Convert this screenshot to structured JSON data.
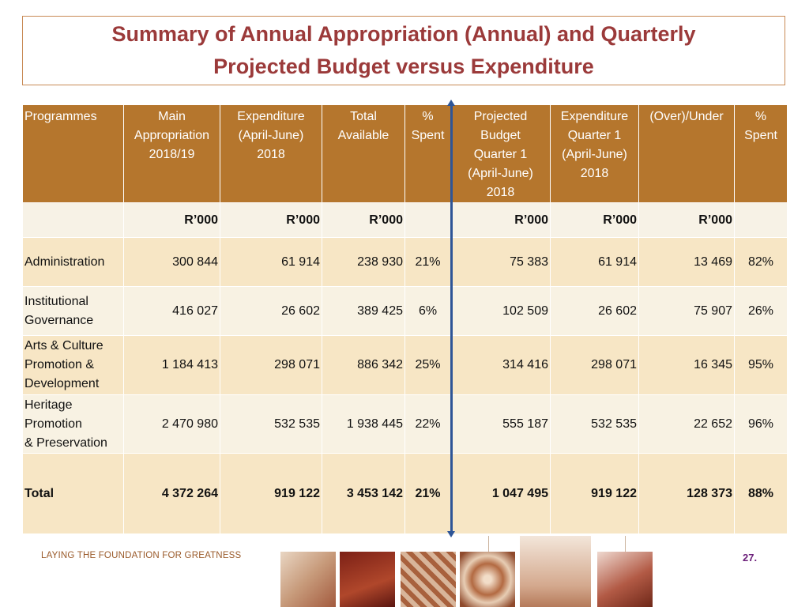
{
  "title": {
    "line1": "Summary of Annual Appropriation (Annual) and  Quarterly",
    "line2": "Projected Budget versus Expenditure"
  },
  "table": {
    "headers": {
      "programmes": "Programmes",
      "main_appropriation": [
        "Main",
        "Appropriation",
        "2018/19"
      ],
      "expenditure": [
        "Expenditure",
        "(April-June)",
        "2018"
      ],
      "total_available": [
        "Total",
        "Available"
      ],
      "pct_spent_1": [
        "%",
        "Spent"
      ],
      "projected_budget": [
        "Projected",
        "Budget",
        "Quarter 1",
        "(April-June)",
        "2018"
      ],
      "expenditure_q1": [
        "Expenditure",
        "Quarter 1",
        "(April-June)",
        "2018"
      ],
      "over_under": [
        "(Over)/Under"
      ],
      "pct_spent_2": [
        "%",
        "Spent"
      ]
    },
    "units": [
      "",
      "R’000",
      "R’000",
      "R’000",
      "",
      "R’000",
      "R’000",
      "R’000",
      ""
    ],
    "rows": [
      {
        "programme": [
          "Administration"
        ],
        "main": "300 844",
        "exp": "61 914",
        "avail": "238 930",
        "pct1": "21%",
        "proj": "75 383",
        "expq1": "61 914",
        "ou": "13 469",
        "pct2": "82%"
      },
      {
        "programme": [
          "Institutional",
          "Governance"
        ],
        "main": "416 027",
        "exp": "26 602",
        "avail": "389 425",
        "pct1": "6%",
        "proj": "102 509",
        "expq1": "26 602",
        "ou": "75 907",
        "pct2": "26%"
      },
      {
        "programme": [
          "Arts & Culture",
          "Promotion &",
          "Development"
        ],
        "main": "1 184 413",
        "exp": "298 071",
        "avail": "886 342",
        "pct1": "25%",
        "proj": "314 416",
        "expq1": "298 071",
        "ou": "16 345",
        "pct2": "95%"
      },
      {
        "programme": [
          "Heritage",
          "Promotion",
          "& Preservation"
        ],
        "main": "2 470 980",
        "exp": "532 535",
        "avail": "1 938 445",
        "pct1": "22%",
        "proj": "555 187",
        "expq1": "532 535",
        "ou": "22 652",
        "pct2": "96%"
      }
    ],
    "total": {
      "programme": "Total",
      "main": "4 372 264",
      "exp": "919 122",
      "avail": "3 453 142",
      "pct1": "21%",
      "proj": "1 047 495",
      "expq1": "919 122",
      "ou": "128 373",
      "pct2": "88%"
    }
  },
  "footer": {
    "tagline": "LAYING THE FOUNDATION FOR GREATNESS",
    "page_number": "27."
  },
  "colors": {
    "title": "#9b3a3a",
    "header_bg": "#b5762d",
    "row_alt_a": "#f7e6c5",
    "row_alt_b": "#f8f2e3",
    "divider_arrow": "#2e5597"
  }
}
